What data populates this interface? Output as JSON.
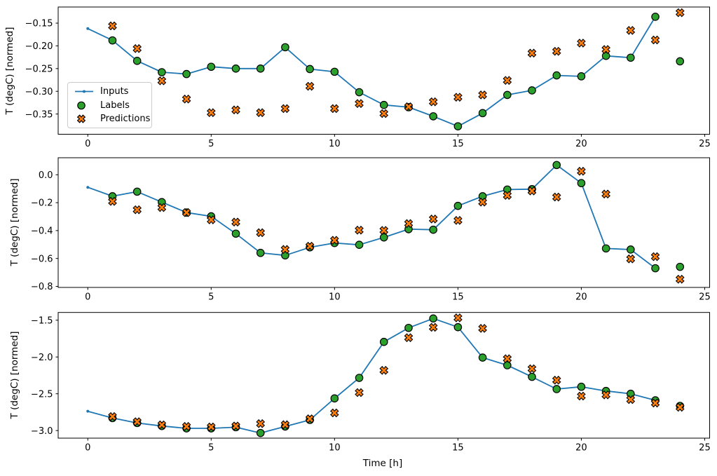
{
  "figure": {
    "background": "#ffffff"
  },
  "colors": {
    "inputs": "#1f77b4",
    "labels": "#2ca02c",
    "predictions": "#ff7f0e",
    "marker_edge": "#000000",
    "axis": "#000000",
    "legend_border": "#cccccc"
  },
  "legend": {
    "entries": [
      "Inputs",
      "Labels",
      "Predictions"
    ]
  },
  "chart_data": [
    {
      "type": "line",
      "ylabel": "T (degC) [normed]",
      "xlabel": "",
      "xlim": [
        -1.2,
        25.2
      ],
      "ylim": [
        -0.3945,
        -0.1145
      ],
      "xticks": [
        0,
        5,
        10,
        15,
        20,
        25
      ],
      "xtick_labels": [
        "0",
        "5",
        "10",
        "15",
        "20",
        "25"
      ],
      "yticks": [
        -0.15,
        -0.2,
        -0.25,
        -0.3,
        -0.35
      ],
      "ytick_labels": [
        "−0.15",
        "−0.20",
        "−0.25",
        "−0.30",
        "−0.35"
      ],
      "series": [
        {
          "name": "Inputs",
          "style": "line-dot",
          "x": [
            0,
            1,
            2,
            3,
            4,
            5,
            6,
            7,
            8,
            9,
            10,
            11,
            12,
            13,
            14,
            15,
            16,
            17,
            18,
            19,
            20,
            21,
            22,
            23
          ],
          "y": [
            -0.162,
            -0.188,
            -0.233,
            -0.258,
            -0.262,
            -0.246,
            -0.25,
            -0.25,
            -0.203,
            -0.251,
            -0.257,
            -0.302,
            -0.33,
            -0.335,
            -0.355,
            -0.377,
            -0.348,
            -0.308,
            -0.298,
            -0.265,
            -0.267,
            -0.222,
            -0.226,
            -0.136
          ]
        },
        {
          "name": "Labels",
          "style": "circle",
          "x": [
            1,
            2,
            3,
            4,
            5,
            6,
            7,
            8,
            9,
            10,
            11,
            12,
            13,
            14,
            15,
            16,
            17,
            18,
            19,
            20,
            21,
            22,
            23,
            24
          ],
          "y": [
            -0.188,
            -0.233,
            -0.258,
            -0.262,
            -0.246,
            -0.25,
            -0.25,
            -0.203,
            -0.251,
            -0.257,
            -0.302,
            -0.33,
            -0.335,
            -0.355,
            -0.377,
            -0.348,
            -0.308,
            -0.298,
            -0.265,
            -0.267,
            -0.222,
            -0.226,
            -0.136,
            -0.234
          ]
        },
        {
          "name": "Predictions",
          "style": "X",
          "x": [
            1,
            2,
            3,
            4,
            5,
            6,
            7,
            8,
            9,
            10,
            11,
            12,
            13,
            14,
            15,
            16,
            17,
            18,
            19,
            20,
            21,
            22,
            23,
            24
          ],
          "y": [
            -0.156,
            -0.206,
            -0.277,
            -0.317,
            -0.347,
            -0.341,
            -0.347,
            -0.338,
            -0.289,
            -0.338,
            -0.327,
            -0.349,
            -0.334,
            -0.323,
            -0.313,
            -0.308,
            -0.276,
            -0.216,
            -0.212,
            -0.194,
            -0.208,
            -0.166,
            -0.187,
            -0.127
          ]
        }
      ]
    },
    {
      "type": "line",
      "ylabel": "T (degC) [normed]",
      "xlabel": "",
      "xlim": [
        -1.2,
        25.2
      ],
      "ylim": [
        -0.8076,
        0.1221
      ],
      "xticks": [
        0,
        5,
        10,
        15,
        20,
        25
      ],
      "xtick_labels": [
        "0",
        "5",
        "10",
        "15",
        "20",
        "25"
      ],
      "yticks": [
        0.0,
        -0.2,
        -0.4,
        -0.6,
        -0.8
      ],
      "ytick_labels": [
        "0.0",
        "−0.2",
        "−0.4",
        "−0.6",
        "−0.8"
      ],
      "series": [
        {
          "name": "Inputs",
          "style": "line-dot",
          "x": [
            0,
            1,
            2,
            3,
            4,
            5,
            6,
            7,
            8,
            9,
            10,
            11,
            12,
            13,
            14,
            15,
            16,
            17,
            18,
            19,
            20,
            21,
            22,
            23
          ],
          "y": [
            -0.09,
            -0.154,
            -0.121,
            -0.196,
            -0.271,
            -0.298,
            -0.422,
            -0.56,
            -0.578,
            -0.52,
            -0.489,
            -0.502,
            -0.449,
            -0.39,
            -0.394,
            -0.223,
            -0.154,
            -0.106,
            -0.103,
            0.07,
            -0.06,
            -0.528,
            -0.536,
            -0.67
          ]
        },
        {
          "name": "Labels",
          "style": "circle",
          "x": [
            1,
            2,
            3,
            4,
            5,
            6,
            7,
            8,
            9,
            10,
            11,
            12,
            13,
            14,
            15,
            16,
            17,
            18,
            19,
            20,
            21,
            22,
            23,
            24
          ],
          "y": [
            -0.154,
            -0.121,
            -0.196,
            -0.271,
            -0.298,
            -0.422,
            -0.56,
            -0.578,
            -0.52,
            -0.489,
            -0.502,
            -0.449,
            -0.39,
            -0.394,
            -0.223,
            -0.154,
            -0.106,
            -0.103,
            0.07,
            -0.06,
            -0.528,
            -0.536,
            -0.67,
            -0.66
          ]
        },
        {
          "name": "Predictions",
          "style": "X",
          "x": [
            1,
            2,
            3,
            4,
            5,
            6,
            7,
            8,
            9,
            10,
            11,
            12,
            13,
            14,
            15,
            16,
            17,
            18,
            19,
            20,
            21,
            22,
            23,
            24
          ],
          "y": [
            -0.191,
            -0.251,
            -0.235,
            -0.271,
            -0.323,
            -0.339,
            -0.415,
            -0.535,
            -0.512,
            -0.47,
            -0.397,
            -0.399,
            -0.35,
            -0.317,
            -0.327,
            -0.196,
            -0.148,
            -0.116,
            -0.16,
            0.025,
            -0.138,
            -0.603,
            -0.587,
            -0.749
          ]
        }
      ]
    },
    {
      "type": "line",
      "ylabel": "T (degC) [normed]",
      "xlabel": "Time [h]",
      "xlim": [
        -1.2,
        25.2
      ],
      "ylim": [
        -3.103,
        -1.395
      ],
      "xticks": [
        0,
        5,
        10,
        15,
        20,
        25
      ],
      "xtick_labels": [
        "0",
        "5",
        "10",
        "15",
        "20",
        "25"
      ],
      "yticks": [
        -1.5,
        -2.0,
        -2.5,
        -3.0
      ],
      "ytick_labels": [
        "−1.5",
        "−2.0",
        "−2.5",
        "−3.0"
      ],
      "series": [
        {
          "name": "Inputs",
          "style": "line-dot",
          "x": [
            0,
            1,
            2,
            3,
            4,
            5,
            6,
            7,
            8,
            9,
            10,
            11,
            12,
            13,
            14,
            15,
            16,
            17,
            18,
            19,
            20,
            21,
            22,
            23
          ],
          "y": [
            -2.738,
            -2.83,
            -2.897,
            -2.938,
            -2.97,
            -2.97,
            -2.954,
            -3.033,
            -2.945,
            -2.855,
            -2.563,
            -2.284,
            -1.795,
            -1.605,
            -1.477,
            -1.595,
            -2.008,
            -2.112,
            -2.27,
            -2.436,
            -2.405,
            -2.462,
            -2.5,
            -2.589
          ]
        },
        {
          "name": "Labels",
          "style": "circle",
          "x": [
            1,
            2,
            3,
            4,
            5,
            6,
            7,
            8,
            9,
            10,
            11,
            12,
            13,
            14,
            15,
            16,
            17,
            18,
            19,
            20,
            21,
            22,
            23,
            24
          ],
          "y": [
            -2.83,
            -2.897,
            -2.938,
            -2.97,
            -2.97,
            -2.954,
            -3.033,
            -2.945,
            -2.855,
            -2.563,
            -2.284,
            -1.795,
            -1.605,
            -1.477,
            -1.595,
            -2.008,
            -2.112,
            -2.27,
            -2.436,
            -2.405,
            -2.462,
            -2.5,
            -2.589,
            -2.665
          ]
        },
        {
          "name": "Predictions",
          "style": "X",
          "x": [
            1,
            2,
            3,
            4,
            5,
            6,
            7,
            8,
            9,
            10,
            11,
            12,
            13,
            14,
            15,
            16,
            17,
            18,
            19,
            20,
            21,
            22,
            23,
            24
          ],
          "y": [
            -2.81,
            -2.88,
            -2.922,
            -2.944,
            -2.951,
            -2.938,
            -2.906,
            -2.92,
            -2.84,
            -2.76,
            -2.484,
            -2.182,
            -1.738,
            -1.597,
            -1.468,
            -1.611,
            -2.024,
            -2.16,
            -2.315,
            -2.531,
            -2.515,
            -2.579,
            -2.627,
            -2.684
          ]
        }
      ]
    }
  ]
}
